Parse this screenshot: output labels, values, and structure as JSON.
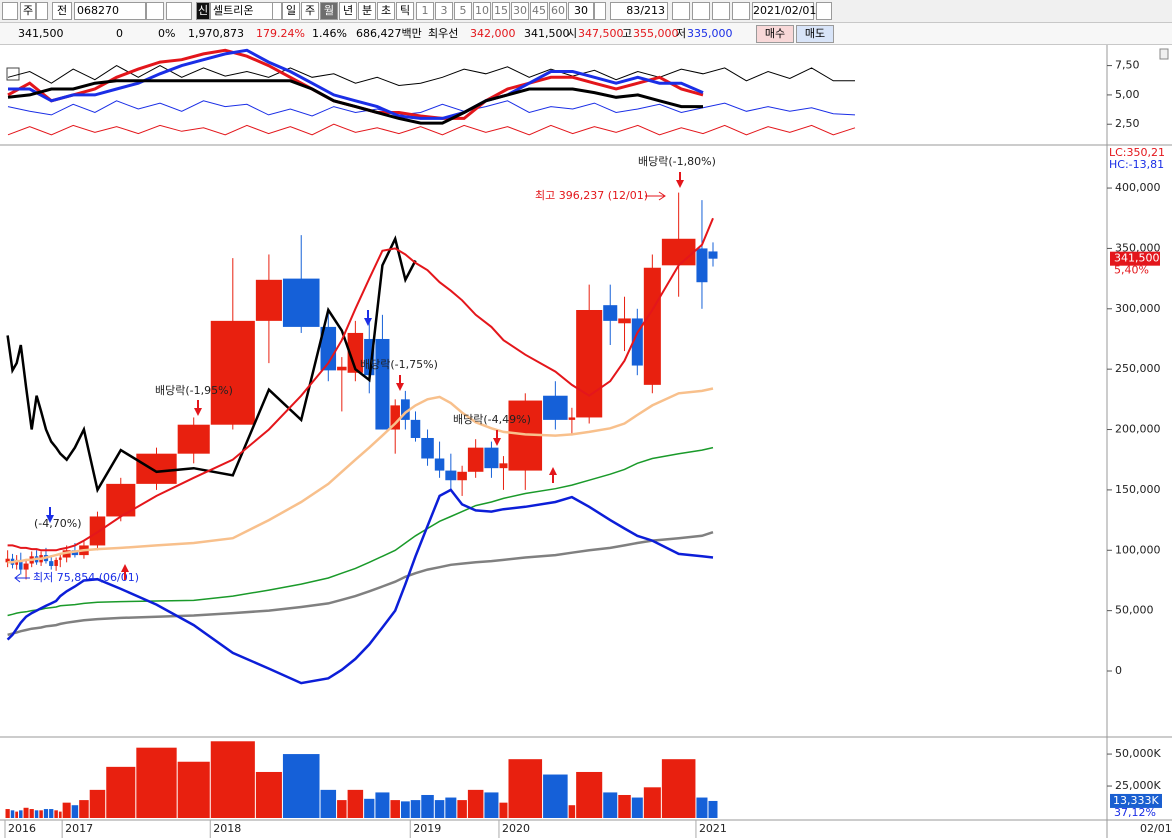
{
  "toolbar": {
    "market": "주",
    "prev": "전",
    "code": "068270",
    "badge": "신",
    "name": "셀트리온",
    "periods": [
      "일",
      "주",
      "월",
      "년",
      "분",
      "초",
      "틱"
    ],
    "intervals": [
      "1",
      "3",
      "5",
      "10",
      "15",
      "30",
      "45",
      "60"
    ],
    "interval_input": "30",
    "count": "83/213",
    "date": "2021/02/01"
  },
  "quote": {
    "items": [
      "341,500",
      "0",
      "0%",
      "1,970,873",
      "179.24%",
      "1.46%",
      "686,427백만",
      "최우선",
      "342,000",
      "341,500",
      "시",
      "347,500",
      "고",
      "355,000",
      "저",
      "335,000"
    ],
    "buy": "매수",
    "sell": "매도"
  },
  "chart_data": [
    {
      "type": "line",
      "ylim": [
        0.9,
        9.0
      ],
      "yticks": [
        {
          "value": 7.5,
          "label": "7,50"
        },
        {
          "value": 5,
          "label": "5,00"
        },
        {
          "value": 2.5,
          "label": "2,50"
        }
      ],
      "series": [
        {
          "color": "#000000",
          "width": 1,
          "values": [
            6.5,
            7.0,
            6.0,
            7.2,
            6.3,
            7.5,
            6.5,
            7.5,
            6.5,
            7.3,
            6.6,
            7.0,
            6.5,
            7.3,
            6.5,
            6.8,
            6.0,
            6.5,
            5.8,
            6.0,
            6.5,
            7.2,
            6.8,
            7.4,
            6.5,
            7.2,
            6.6,
            7.1,
            6.3,
            7.0,
            6.5,
            7.2,
            6.8,
            7.3,
            6.2,
            7.0,
            6.4,
            7.3,
            6.2,
            6.2
          ]
        },
        {
          "color": "#1a2ee6",
          "width": 1,
          "values": [
            4.0,
            3.6,
            3.3,
            4.2,
            3.5,
            4.5,
            3.8,
            4.3,
            3.6,
            4.5,
            4.0,
            4.2,
            3.3,
            3.8,
            3.2,
            4.0,
            3.5,
            3.8,
            3.3,
            3.5,
            4.2,
            3.6,
            4.0,
            4.5,
            3.5,
            4.0,
            3.8,
            4.3,
            3.5,
            3.8,
            4.2,
            3.5,
            3.9,
            4.3,
            3.6,
            4.0,
            3.6,
            3.9,
            3.4,
            3.3
          ]
        },
        {
          "color": "#e3161b",
          "width": 1,
          "values": [
            1.6,
            2.3,
            1.6,
            2.4,
            1.8,
            2.3,
            1.7,
            2.4,
            1.9,
            2.2,
            1.6,
            2.4,
            1.7,
            2.3,
            1.6,
            2.5,
            1.8,
            2.2,
            1.7,
            2.3,
            1.6,
            2.4,
            1.8,
            2.3,
            1.6,
            2.4,
            1.7,
            2.3,
            1.8,
            2.4,
            1.6,
            2.2,
            1.7,
            2.4,
            1.6,
            2.3,
            1.8,
            2.4,
            1.6,
            2.2
          ]
        },
        {
          "color": "#e3161b",
          "width": 3,
          "values": [
            5.0,
            6.0,
            4.5,
            5.0,
            5.5,
            6.5,
            7.2,
            7.8,
            8.0,
            8.5,
            8.8,
            8.3,
            7.5,
            6.5,
            5.5,
            4.5,
            4.0,
            3.5,
            3.5,
            3.2,
            3.0,
            3.0,
            4.5,
            5.5,
            6.0,
            6.5,
            6.5,
            6.0,
            5.5,
            6.0,
            6.5,
            5.5,
            5.0,
            null,
            null,
            null,
            null,
            null,
            null,
            null
          ]
        },
        {
          "color": "#1a2ee6",
          "width": 3,
          "values": [
            5.5,
            5.5,
            4.5,
            5.0,
            5.0,
            5.5,
            6.0,
            6.8,
            7.5,
            8.0,
            8.5,
            8.8,
            7.8,
            7.0,
            6.0,
            5.0,
            4.5,
            4.0,
            3.2,
            3.0,
            3.0,
            3.5,
            4.5,
            5.0,
            6.0,
            7.0,
            7.0,
            6.5,
            6.0,
            6.5,
            6.0,
            6.0,
            5.2,
            null,
            null,
            null,
            null,
            null,
            null,
            null
          ]
        },
        {
          "color": "#000000",
          "width": 3,
          "values": [
            4.8,
            5.0,
            5.5,
            5.5,
            6.0,
            6.2,
            6.2,
            6.2,
            6.2,
            6.2,
            6.2,
            6.2,
            6.2,
            6.2,
            5.5,
            4.5,
            4.0,
            3.5,
            3.0,
            2.6,
            2.6,
            3.5,
            4.5,
            5.0,
            5.5,
            5.5,
            5.5,
            5.2,
            4.8,
            5.0,
            4.5,
            4.0,
            4.0,
            null,
            null,
            null,
            null,
            null,
            null,
            null
          ]
        }
      ]
    },
    {
      "type": "candlestick",
      "ylim": [
        -53000,
        434000
      ],
      "yticks": [
        0,
        {
          "value": 50000,
          "label": "50,000"
        },
        {
          "value": 100000,
          "label": "100,000"
        },
        {
          "value": 150000,
          "label": "150,000"
        },
        {
          "value": 200000,
          "label": "200,000"
        },
        {
          "value": 250000,
          "label": "250,000"
        },
        {
          "value": 300000,
          "label": "300,000"
        },
        {
          "value": 350000,
          "label": "350,000"
        },
        {
          "value": 400000,
          "label": "400,000"
        }
      ],
      "categories": [
        "2016",
        null,
        null,
        null,
        null,
        null,
        null,
        null,
        null,
        null,
        null,
        null,
        "2017",
        null,
        null,
        null,
        null,
        null,
        null,
        "2018",
        null,
        null,
        null,
        null,
        null,
        null,
        null,
        null,
        null,
        "2019",
        null,
        null,
        null,
        null,
        null,
        null,
        "2020",
        null,
        null,
        null,
        null,
        null,
        null,
        null,
        null,
        null,
        "2021",
        null
      ],
      "open": [
        90000,
        93000,
        88000,
        92000,
        84000,
        89000,
        95000,
        90000,
        96000,
        91000,
        87000,
        92000,
        94000,
        100000,
        96000,
        104000,
        128000,
        155000,
        180000,
        204000,
        290000,
        325000,
        285000,
        249000,
        247000,
        275000,
        275000,
        200000,
        225000,
        208000,
        193000,
        176000,
        166000,
        158000,
        165000,
        185000,
        168000,
        166000,
        228000,
        208000,
        210000,
        303000,
        288000,
        292000,
        237000,
        336000,
        350000,
        347500
      ],
      "high": [
        100000,
        97000,
        96000,
        98000,
        92000,
        99000,
        100000,
        99000,
        102000,
        96000,
        94000,
        97000,
        104000,
        106000,
        108000,
        132000,
        160000,
        185000,
        210000,
        342000,
        345000,
        361000,
        300000,
        260000,
        290000,
        290000,
        295000,
        225000,
        232000,
        215000,
        200000,
        190000,
        180000,
        170000,
        192000,
        190000,
        178000,
        230000,
        240000,
        218000,
        320000,
        320000,
        310000,
        300000,
        345000,
        396237,
        390000,
        355000
      ],
      "low": [
        86000,
        85000,
        84000,
        80000,
        75854,
        86000,
        88000,
        87000,
        89000,
        84000,
        83000,
        86000,
        90000,
        94000,
        93000,
        100000,
        124000,
        150000,
        172000,
        200000,
        255000,
        280000,
        240000,
        215000,
        240000,
        230000,
        200000,
        180000,
        200000,
        190000,
        170000,
        160000,
        150000,
        145000,
        160000,
        160000,
        150000,
        150000,
        200000,
        195000,
        205000,
        270000,
        265000,
        245000,
        230000,
        310000,
        300000,
        335000
      ],
      "close": [
        93000,
        88000,
        92000,
        84000,
        89000,
        95000,
        90000,
        96000,
        91000,
        87000,
        92000,
        94000,
        100000,
        96000,
        104000,
        128000,
        155000,
        180000,
        204000,
        290000,
        324000,
        285000,
        249000,
        252000,
        280000,
        245000,
        200000,
        220000,
        208000,
        193000,
        176000,
        166000,
        158000,
        165000,
        185000,
        168000,
        172000,
        224000,
        208000,
        210000,
        299000,
        290000,
        292000,
        253000,
        334000,
        358000,
        322000,
        341500
      ],
      "up_color": "#e8200f",
      "down_color": "#1560d8",
      "series": [
        {
          "color": "#f8c08c",
          "width": 2.5,
          "values": [
            90000,
            90000,
            91000,
            91000,
            92000,
            92000,
            93000,
            93000,
            94000,
            95000,
            96000,
            97000,
            98000,
            99000,
            100000,
            101000,
            102000,
            104000,
            106000,
            110000,
            125000,
            140000,
            155000,
            165000,
            175000,
            185000,
            195000,
            205000,
            214000,
            220000,
            225000,
            227000,
            222000,
            214000,
            206000,
            201000,
            198000,
            196000,
            195000,
            196000,
            198000,
            201000,
            205000,
            212000,
            220000,
            230000,
            232000,
            234000
          ]
        },
        {
          "color": "#1a9a2a",
          "width": 1.5,
          "values": [
            46000,
            47000,
            48000,
            48500,
            49000,
            50000,
            50500,
            51000,
            52000,
            52500,
            53000,
            54000,
            54500,
            55000,
            56000,
            57000,
            57500,
            58000,
            58500,
            62000,
            67000,
            72000,
            77000,
            81000,
            85000,
            90000,
            95000,
            100000,
            106000,
            112000,
            118000,
            124000,
            128000,
            132000,
            137000,
            140000,
            143000,
            147000,
            151000,
            154000,
            158000,
            163000,
            167000,
            172000,
            176000,
            180000,
            183000,
            185000
          ]
        },
        {
          "color": "#808080",
          "width": 2.5,
          "values": [
            30000,
            31000,
            32000,
            33000,
            34000,
            35000,
            35500,
            36000,
            37000,
            37500,
            38000,
            39000,
            40000,
            41000,
            42000,
            43000,
            44000,
            45000,
            46000,
            48000,
            50000,
            53000,
            56000,
            59000,
            62000,
            66000,
            70000,
            74000,
            78000,
            81000,
            84000,
            86000,
            88000,
            89000,
            90000,
            91000,
            92000,
            94000,
            96000,
            98000,
            100000,
            102000,
            104000,
            106000,
            108000,
            110000,
            112000,
            115000
          ]
        },
        {
          "color": "#0c1ed8",
          "width": 2.5,
          "values": [
            26000,
            30000,
            35000,
            40000,
            45000,
            48000,
            50000,
            52000,
            54000,
            56000,
            58000,
            62000,
            66000,
            70000,
            75000,
            76000,
            68000,
            55000,
            38000,
            15000,
            2000,
            -10000,
            -6000,
            1000,
            10000,
            22000,
            36000,
            50000,
            72000,
            95000,
            120000,
            145000,
            150000,
            138000,
            133000,
            132000,
            134000,
            136000,
            140000,
            144000,
            136000,
            125000,
            118000,
            112000,
            108000,
            97000,
            95000,
            94000
          ]
        },
        {
          "color": "#000000",
          "width": 2.5,
          "values": [
            278000,
            249000,
            255000,
            270000,
            235000,
            200000,
            228000,
            215000,
            200000,
            190000,
            185000,
            180000,
            175000,
            185000,
            200000,
            150000,
            183000,
            165000,
            168000,
            162000,
            233000,
            208000,
            299000,
            282000,
            250000,
            241000,
            336000,
            358000,
            324000,
            340000,
            null,
            null,
            null,
            null,
            null,
            null,
            null,
            null,
            null,
            null,
            null,
            null,
            null,
            null,
            null,
            null,
            null,
            null
          ]
        },
        {
          "color": "#e4161b",
          "width": 2,
          "values": [
            104000,
            104000,
            103000,
            102000,
            102000,
            101000,
            101000,
            100000,
            100000,
            100000,
            100000,
            101000,
            102000,
            104000,
            108000,
            115000,
            128000,
            145000,
            160000,
            175000,
            200000,
            228000,
            255000,
            274000,
            300000,
            325000,
            348000,
            350000,
            345000,
            338000,
            332000,
            322000,
            315000,
            307000,
            295000,
            285000,
            274000,
            262000,
            248000,
            237000,
            228000,
            240000,
            257000,
            280000,
            299000,
            336000,
            353000,
            375000
          ]
        }
      ],
      "annotations": [
        "(-4,70%)",
        "최저 75,854 (06/01)",
        "배당락(-1,95%)",
        "배당락(-1,75%)",
        "배당락(-4,49%)",
        "배당락(-1,80%)",
        "최고 396,237 (12/01)"
      ],
      "lc_label": "LC:350,21",
      "hc_label": "HC:-13,81",
      "price_tag": "341,500",
      "change_label": "5,40%",
      "end_label": "02/01"
    },
    {
      "type": "bar",
      "ylim": [
        0,
        61000
      ],
      "yticks": [
        {
          "value": 25000,
          "label": "25,000K"
        },
        {
          "value": 50000,
          "label": "50,000K"
        }
      ],
      "values": [
        7000,
        6000,
        5000,
        6000,
        8000,
        7000,
        6000,
        6000,
        7000,
        7000,
        6000,
        5000,
        12000,
        10000,
        14000,
        22000,
        40000,
        55000,
        44000,
        60000,
        36000,
        50000,
        22000,
        14000,
        22000,
        15000,
        20000,
        14000,
        13000,
        14000,
        18000,
        14000,
        16000,
        14000,
        22000,
        20000,
        12000,
        46000,
        34000,
        10000,
        36000,
        20000,
        18000,
        16000,
        24000,
        46000,
        16000,
        13333
      ],
      "value_labels": [
        null,
        null,
        null,
        null,
        null,
        null,
        null,
        null,
        null,
        null,
        null,
        null,
        null,
        null,
        null,
        null,
        null,
        null,
        null,
        null,
        null,
        null,
        null,
        null,
        null,
        null,
        null,
        null,
        null,
        null,
        null,
        null,
        null,
        null,
        null,
        null,
        null,
        null,
        null,
        null,
        null,
        null,
        null,
        null,
        null,
        null,
        null,
        "13,333K"
      ],
      "ratio_label": "37,12%"
    }
  ]
}
